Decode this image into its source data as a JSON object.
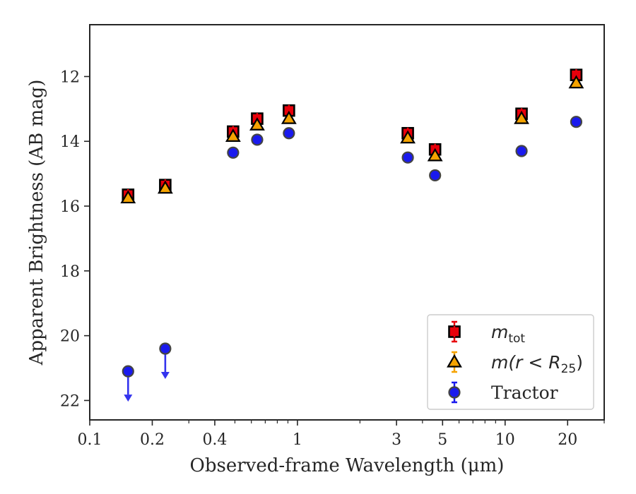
{
  "chart_data": {
    "type": "scatter",
    "xlabel": "Observed-frame Wavelength (μm)",
    "ylabel": "Apparent Brightness (AB mag)",
    "x_scale": "log",
    "xlim": [
      0.1,
      30
    ],
    "ylim": [
      22.6,
      10.4
    ],
    "y_inverted": true,
    "x_ticks": [
      0.1,
      0.2,
      0.4,
      1,
      3,
      5,
      10,
      20
    ],
    "x_tick_labels": [
      "0.1",
      "0.2",
      "0.4",
      "1",
      "3",
      "5",
      "10",
      "20"
    ],
    "y_ticks": [
      12,
      14,
      16,
      18,
      20,
      22
    ],
    "y_tick_labels": [
      "12",
      "14",
      "16",
      "18",
      "20",
      "22"
    ],
    "grid": false,
    "legend_position": "bottom-right",
    "series": [
      {
        "name": "m_tot",
        "legend_label": {
          "base": "m",
          "sub": "tot"
        },
        "marker": "square",
        "face_color": "#e8000b",
        "edge_color": "#000000",
        "x": [
          0.153,
          0.231,
          0.49,
          0.64,
          0.91,
          3.4,
          4.6,
          12,
          22
        ],
        "y": [
          15.65,
          15.35,
          13.7,
          13.3,
          13.05,
          13.75,
          14.25,
          13.15,
          11.95
        ]
      },
      {
        "name": "m(r < R25)",
        "legend_label": {
          "base": "m(r < R",
          "sub": "25",
          "close": ")"
        },
        "marker": "triangle",
        "face_color": "#f5a300",
        "edge_color": "#000000",
        "x": [
          0.153,
          0.231,
          0.49,
          0.64,
          0.91,
          3.4,
          4.6,
          12,
          22
        ],
        "y": [
          15.75,
          15.45,
          13.85,
          13.5,
          13.3,
          13.9,
          14.45,
          13.3,
          12.2
        ]
      },
      {
        "name": "Tractor",
        "legend_label": {
          "base": "Tractor"
        },
        "marker": "circle",
        "face_color": "#1a1aee",
        "edge_color": "#444444",
        "x": [
          0.153,
          0.231,
          0.49,
          0.64,
          0.91,
          3.4,
          4.6,
          12,
          22
        ],
        "y": [
          21.1,
          20.4,
          14.35,
          13.95,
          13.75,
          14.5,
          15.05,
          14.3,
          13.4
        ],
        "upper_limits": [
          true,
          true,
          false,
          false,
          false,
          false,
          false,
          false,
          false
        ]
      }
    ]
  }
}
